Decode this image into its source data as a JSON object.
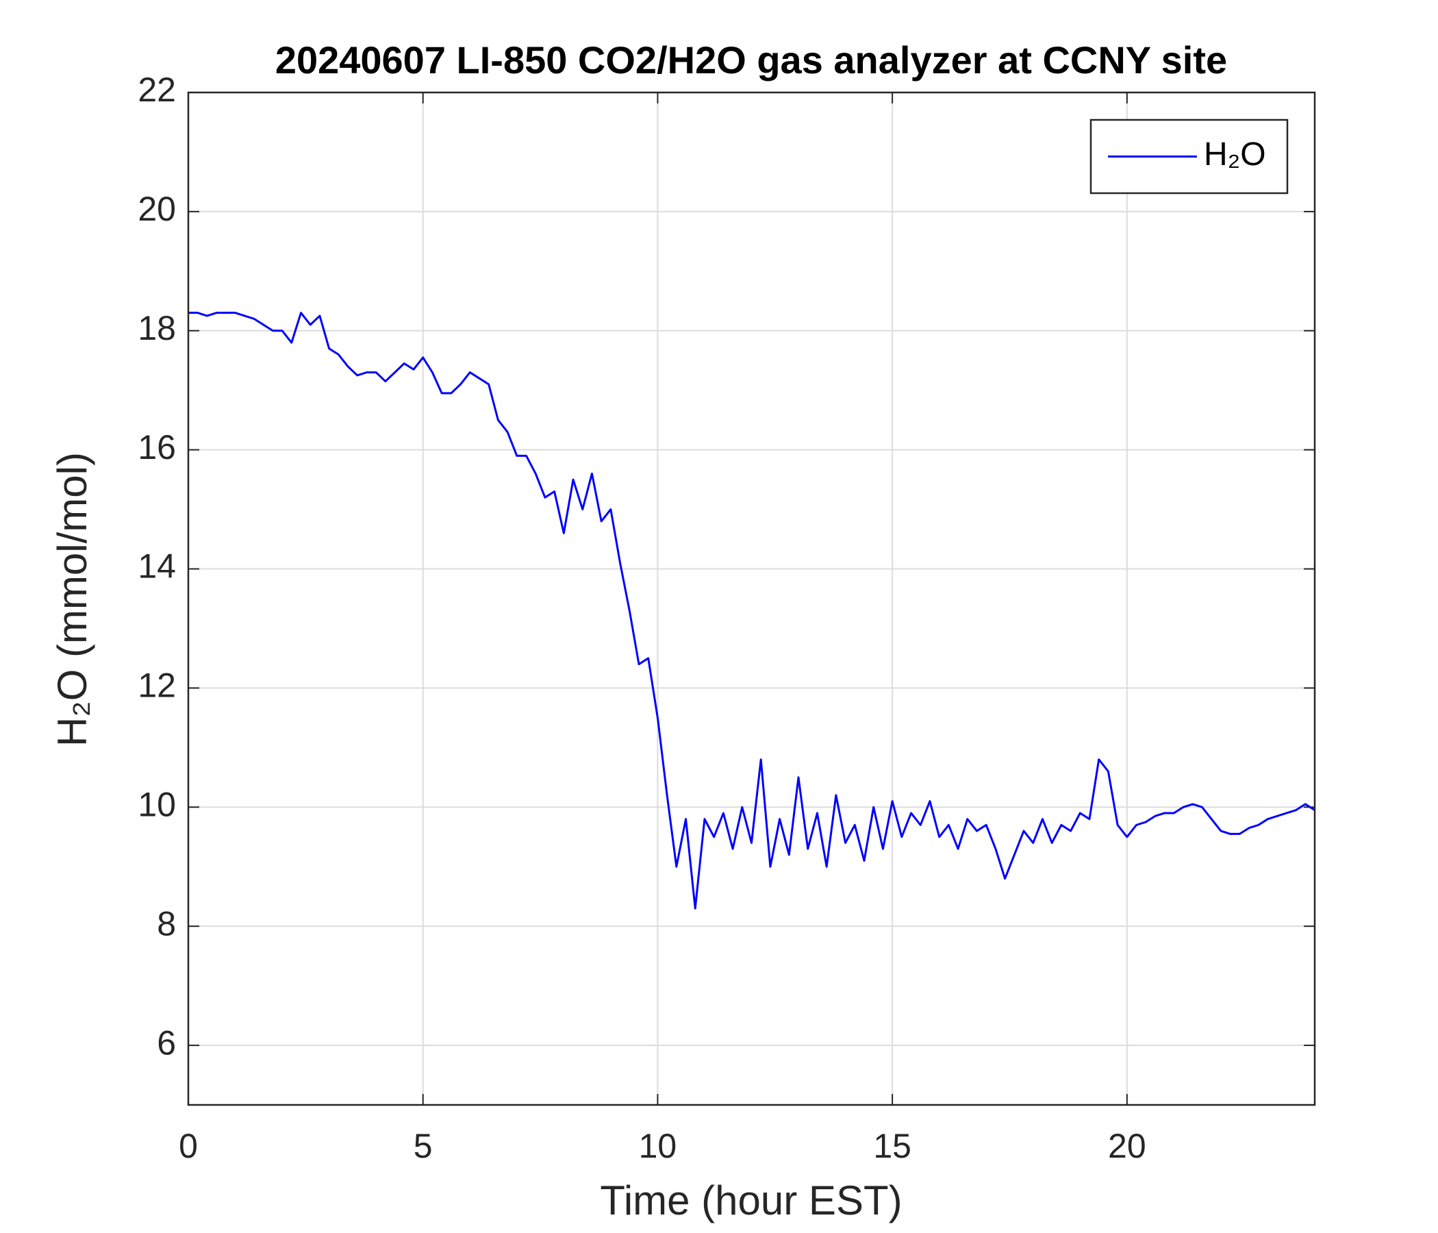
{
  "chart_data": {
    "type": "line",
    "title": "20240607 LI-850 CO2/H2O gas analyzer at CCNY site",
    "xlabel": "Time (hour EST)",
    "ylabel": "H₂O (mmol/mol)",
    "x": [
      0,
      0.2,
      0.4,
      0.6,
      0.8,
      1.0,
      1.2,
      1.4,
      1.6,
      1.8,
      2.0,
      2.2,
      2.4,
      2.6,
      2.8,
      3.0,
      3.2,
      3.4,
      3.6,
      3.8,
      4.0,
      4.2,
      4.4,
      4.6,
      4.8,
      5.0,
      5.2,
      5.4,
      5.6,
      5.8,
      6.0,
      6.2,
      6.4,
      6.6,
      6.8,
      7.0,
      7.2,
      7.4,
      7.6,
      7.8,
      8.0,
      8.2,
      8.4,
      8.6,
      8.8,
      9.0,
      9.2,
      9.4,
      9.6,
      9.8,
      10.0,
      10.2,
      10.4,
      10.6,
      10.8,
      11.0,
      11.2,
      11.4,
      11.6,
      11.8,
      12.0,
      12.2,
      12.4,
      12.6,
      12.8,
      13.0,
      13.2,
      13.4,
      13.6,
      13.8,
      14.0,
      14.2,
      14.4,
      14.6,
      14.8,
      15.0,
      15.2,
      15.4,
      15.6,
      15.8,
      16.0,
      16.2,
      16.4,
      16.6,
      16.8,
      17.0,
      17.2,
      17.4,
      17.6,
      17.8,
      18.0,
      18.2,
      18.4,
      18.6,
      18.8,
      19.0,
      19.2,
      19.4,
      19.6,
      19.8,
      20.0,
      20.2,
      20.4,
      20.6,
      20.8,
      21.0,
      21.2,
      21.4,
      21.6,
      21.8,
      22.0,
      22.2,
      22.4,
      22.6,
      22.8,
      23.0,
      23.2,
      23.4,
      23.6,
      23.8,
      24.0
    ],
    "series": [
      {
        "name": "H₂O",
        "color": "#0000ff",
        "values": [
          18.3,
          18.3,
          18.25,
          18.3,
          18.3,
          18.3,
          18.25,
          18.2,
          18.1,
          18.0,
          18.0,
          17.8,
          18.3,
          18.1,
          18.25,
          17.7,
          17.6,
          17.4,
          17.25,
          17.3,
          17.3,
          17.15,
          17.3,
          17.45,
          17.35,
          17.55,
          17.3,
          16.95,
          16.95,
          17.1,
          17.3,
          17.2,
          17.1,
          16.5,
          16.3,
          15.9,
          15.9,
          15.6,
          15.2,
          15.3,
          14.6,
          15.5,
          15.0,
          15.6,
          14.8,
          15.0,
          14.1,
          13.3,
          12.4,
          12.5,
          11.5,
          10.2,
          9.0,
          9.8,
          8.3,
          9.8,
          9.5,
          9.9,
          9.3,
          10.0,
          9.4,
          10.8,
          9.0,
          9.8,
          9.2,
          10.5,
          9.3,
          9.9,
          9.0,
          10.2,
          9.4,
          9.7,
          9.1,
          10.0,
          9.3,
          10.1,
          9.5,
          9.9,
          9.7,
          10.1,
          9.5,
          9.7,
          9.3,
          9.8,
          9.6,
          9.7,
          9.3,
          8.8,
          9.2,
          9.6,
          9.4,
          9.8,
          9.4,
          9.7,
          9.6,
          9.9,
          9.8,
          10.8,
          10.6,
          9.7,
          9.5,
          9.7,
          9.75,
          9.85,
          9.9,
          9.9,
          10.0,
          10.05,
          10.0,
          9.8,
          9.6,
          9.55,
          9.55,
          9.65,
          9.7,
          9.8,
          9.85,
          9.9,
          9.95,
          10.05,
          9.95
        ]
      }
    ],
    "xlim": [
      0,
      24
    ],
    "xticks": [
      0,
      5,
      10,
      15,
      20
    ],
    "ylim": [
      5,
      22
    ],
    "yticks": [
      6,
      8,
      10,
      12,
      14,
      16,
      18,
      20,
      22
    ],
    "grid": true,
    "legend": "northeast"
  }
}
